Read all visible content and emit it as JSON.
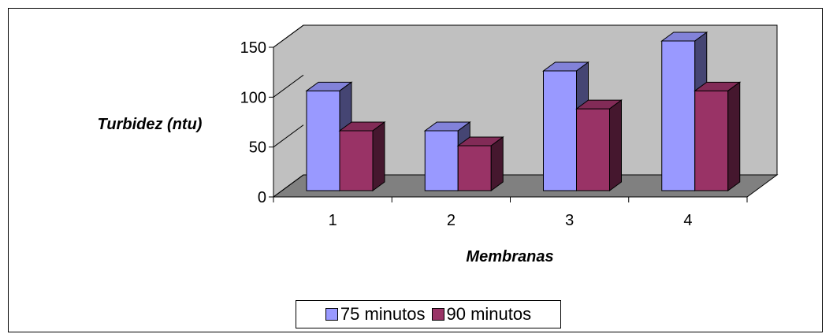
{
  "chart_data": {
    "type": "bar",
    "title": "",
    "xlabel": "Membranas",
    "ylabel": "Turbidez (ntu)",
    "categories": [
      "1",
      "2",
      "3",
      "4"
    ],
    "ylim": [
      0,
      150
    ],
    "yticks": [
      "0",
      "50",
      "100",
      "150"
    ],
    "series": [
      {
        "name": "75 minutos",
        "values": [
          100,
          60,
          120,
          150
        ],
        "color": "#9999FF"
      },
      {
        "name": "90 minutos",
        "values": [
          60,
          45,
          82,
          100
        ],
        "color": "#993366"
      }
    ],
    "grid": false,
    "legend_position": "bottom",
    "three_d": true,
    "wall_color": "#C0C0C0",
    "floor_color": "#808080"
  }
}
